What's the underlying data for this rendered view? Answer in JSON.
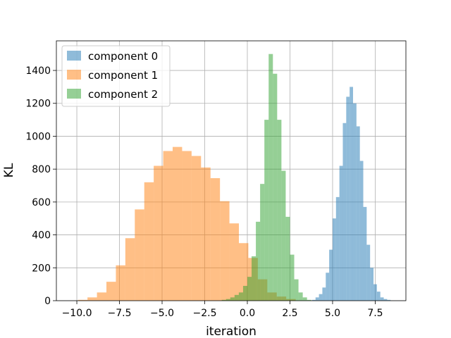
{
  "chart_data": {
    "type": "histogram",
    "xlabel": "iteration",
    "ylabel": "KL",
    "xlim": [
      -11.2,
      9.3
    ],
    "ylim": [
      0,
      1580
    ],
    "xticks": [
      -10.0,
      -7.5,
      -5.0,
      -2.5,
      0.0,
      2.5,
      5.0,
      7.5
    ],
    "xtick_labels": [
      "−10.0",
      "−7.5",
      "−5.0",
      "−2.5",
      "0.0",
      "2.5",
      "5.0",
      "7.5"
    ],
    "yticks": [
      0,
      200,
      400,
      600,
      800,
      1000,
      1200,
      1400
    ],
    "ytick_labels": [
      "0",
      "200",
      "400",
      "600",
      "800",
      "1000",
      "1200",
      "1400"
    ],
    "grid": true,
    "legend_position": "top-left",
    "series": [
      {
        "name": "component 0",
        "color": "#1f77b4",
        "opacity": 0.5,
        "bin_width": 0.2,
        "bins": [
          [
            3.8,
            5
          ],
          [
            4.0,
            20
          ],
          [
            4.2,
            40
          ],
          [
            4.4,
            80
          ],
          [
            4.6,
            170
          ],
          [
            4.8,
            310
          ],
          [
            5.0,
            500
          ],
          [
            5.2,
            630
          ],
          [
            5.4,
            820
          ],
          [
            5.6,
            1080
          ],
          [
            5.8,
            1240
          ],
          [
            6.0,
            1300
          ],
          [
            6.2,
            1200
          ],
          [
            6.4,
            1060
          ],
          [
            6.6,
            850
          ],
          [
            6.8,
            570
          ],
          [
            7.0,
            340
          ],
          [
            7.2,
            200
          ],
          [
            7.4,
            100
          ],
          [
            7.6,
            55
          ],
          [
            7.8,
            20
          ],
          [
            8.0,
            10
          ],
          [
            8.2,
            5
          ]
        ]
      },
      {
        "name": "component 1",
        "color": "#ff7f0e",
        "opacity": 0.5,
        "bin_width": 0.555,
        "bins": [
          [
            -9.93,
            5
          ],
          [
            -9.375,
            20
          ],
          [
            -8.82,
            50
          ],
          [
            -8.265,
            115
          ],
          [
            -7.71,
            215
          ],
          [
            -7.155,
            380
          ],
          [
            -6.6,
            555
          ],
          [
            -6.045,
            720
          ],
          [
            -5.49,
            820
          ],
          [
            -4.935,
            910
          ],
          [
            -4.38,
            935
          ],
          [
            -3.825,
            910
          ],
          [
            -3.27,
            880
          ],
          [
            -2.715,
            810
          ],
          [
            -2.16,
            745
          ],
          [
            -1.605,
            605
          ],
          [
            -1.05,
            470
          ],
          [
            -0.495,
            350
          ],
          [
            0.06,
            260
          ],
          [
            0.615,
            130
          ],
          [
            1.17,
            50
          ],
          [
            1.725,
            25
          ],
          [
            2.28,
            10
          ]
        ]
      },
      {
        "name": "component 2",
        "color": "#2ca02c",
        "opacity": 0.5,
        "bin_width": 0.25,
        "bins": [
          [
            -1.5,
            5
          ],
          [
            -1.25,
            10
          ],
          [
            -1.0,
            20
          ],
          [
            -0.75,
            35
          ],
          [
            -0.5,
            50
          ],
          [
            -0.25,
            90
          ],
          [
            0.0,
            145
          ],
          [
            0.25,
            270
          ],
          [
            0.5,
            480
          ],
          [
            0.75,
            710
          ],
          [
            1.0,
            1100
          ],
          [
            1.25,
            1500
          ],
          [
            1.5,
            1380
          ],
          [
            1.75,
            1100
          ],
          [
            2.0,
            790
          ],
          [
            2.25,
            510
          ],
          [
            2.5,
            280
          ],
          [
            2.75,
            130
          ],
          [
            3.0,
            50
          ],
          [
            3.25,
            20
          ],
          [
            3.5,
            5
          ]
        ]
      }
    ]
  }
}
